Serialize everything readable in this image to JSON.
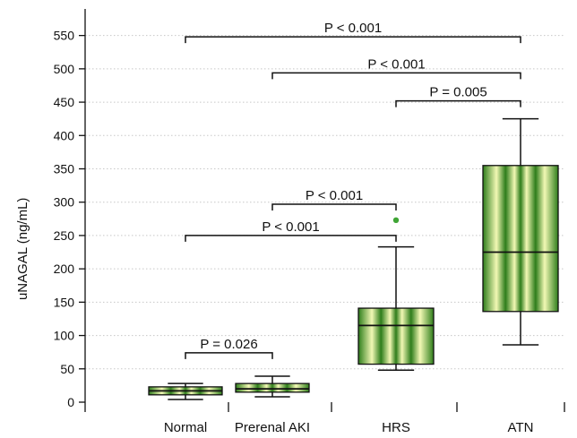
{
  "chart_data": {
    "type": "box",
    "ylabel": "uNAGAL (ng/mL)",
    "xlabel": "",
    "ylim": [
      0,
      580
    ],
    "yticks": [
      0,
      50,
      100,
      150,
      200,
      250,
      300,
      350,
      400,
      450,
      500,
      550
    ],
    "grid": "horizontal-dotted",
    "categories": [
      "Normal",
      "Prerenal AKI",
      "HRS",
      "ATN"
    ],
    "boxes": [
      {
        "category": "Normal",
        "whisker_low": 4,
        "q1": 11,
        "median": 17,
        "q3": 23,
        "whisker_high": 28,
        "outliers": []
      },
      {
        "category": "Prerenal AKI",
        "whisker_low": 8,
        "q1": 15,
        "median": 20,
        "q3": 28,
        "whisker_high": 39,
        "outliers": []
      },
      {
        "category": "HRS",
        "whisker_low": 48,
        "q1": 57,
        "median": 115,
        "q3": 141,
        "whisker_high": 233,
        "outliers": [
          273
        ]
      },
      {
        "category": "ATN",
        "whisker_low": 86,
        "q1": 136,
        "median": 225,
        "q3": 355,
        "whisker_high": 425,
        "outliers": []
      }
    ],
    "comparisons": [
      {
        "from": "Normal",
        "to": "ATN",
        "y": 548,
        "label": "P < 0.001"
      },
      {
        "from": "Prerenal AKI",
        "to": "ATN",
        "y": 494,
        "label": "P < 0.001"
      },
      {
        "from": "HRS",
        "to": "ATN",
        "y": 452,
        "label": "P = 0.005"
      },
      {
        "from": "Prerenal AKI",
        "to": "HRS",
        "y": 297,
        "label": "P < 0.001"
      },
      {
        "from": "Normal",
        "to": "HRS",
        "y": 250,
        "label": "P < 0.001"
      },
      {
        "from": "Normal",
        "to": "Prerenal AKI",
        "y": 74,
        "label": "P = 0.026"
      }
    ],
    "colors": {
      "box_dark": "#2e7d1b",
      "box_light": "#f2f8b4",
      "outlier": "#3fa535",
      "axis": "#111111",
      "grid": "#c8c8c8"
    }
  }
}
